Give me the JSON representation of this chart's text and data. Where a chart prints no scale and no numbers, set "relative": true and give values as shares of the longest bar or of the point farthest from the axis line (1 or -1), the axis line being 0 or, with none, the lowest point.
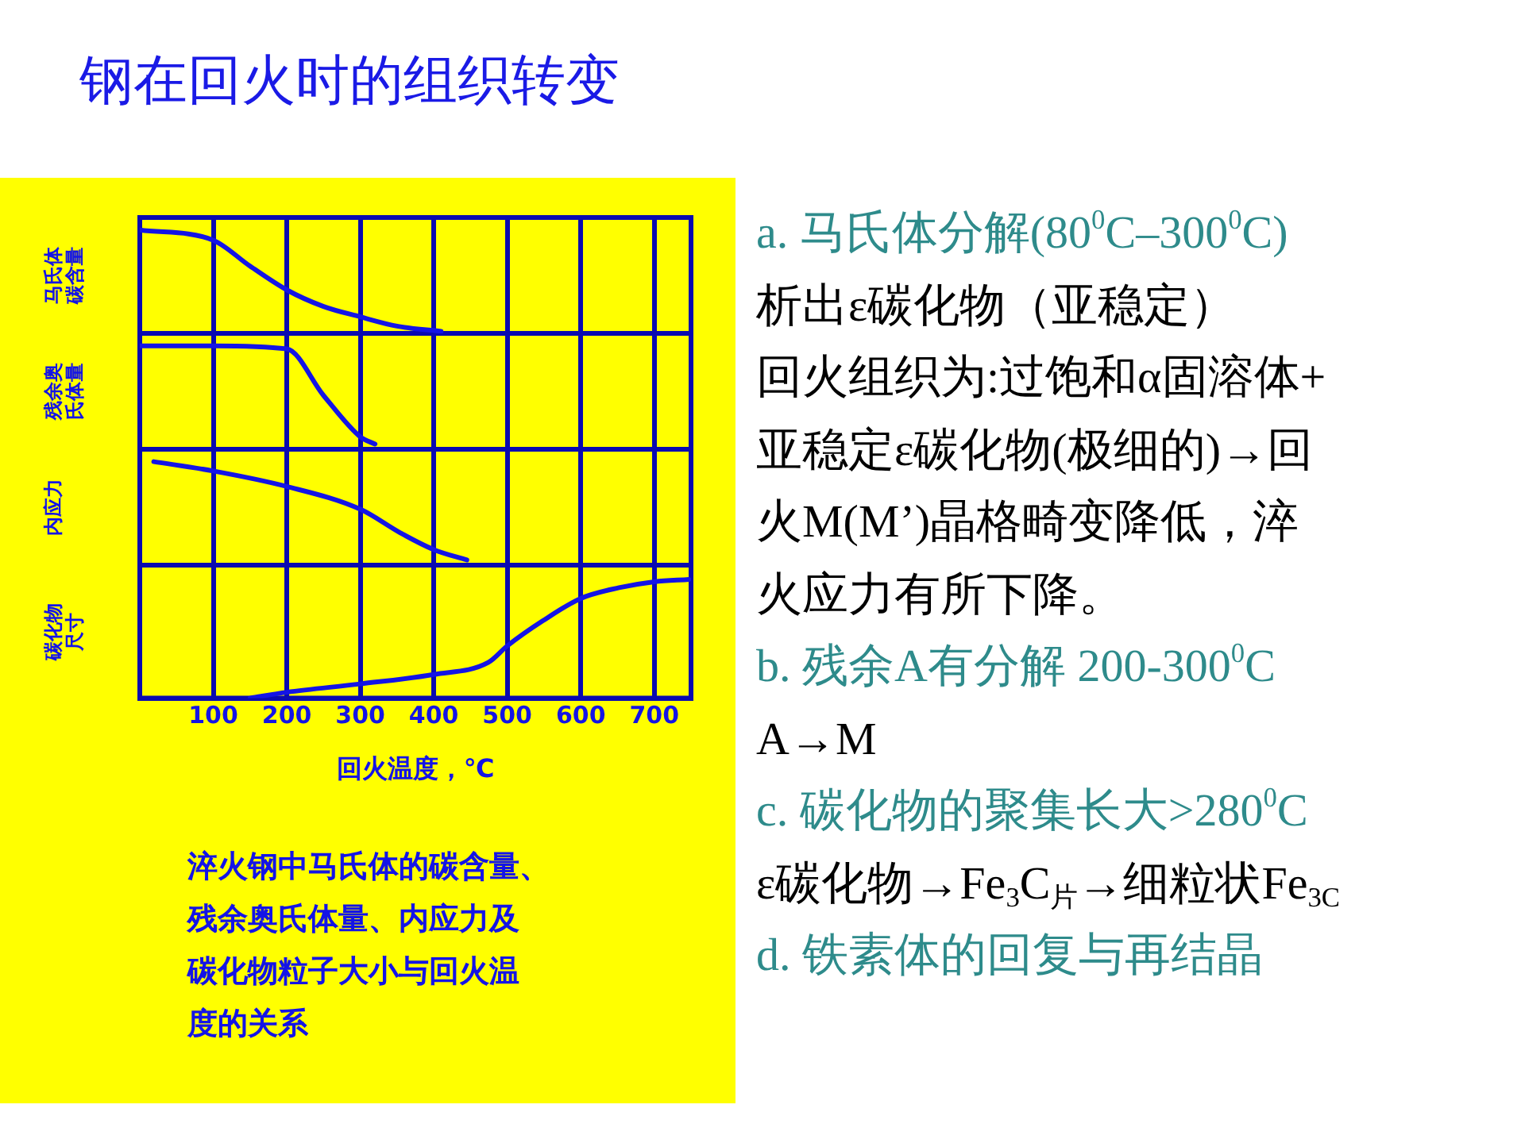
{
  "chart_data": [
    {
      "type": "line",
      "relative": true,
      "ylabel": "马氏体碳含量",
      "xlim": [
        0,
        750
      ],
      "xticks": [
        100,
        200,
        300,
        400,
        500,
        600,
        700
      ],
      "tick_labels": false,
      "grid": "x",
      "marker": "none",
      "color": "#1414e6",
      "x": [
        0,
        100,
        150,
        200,
        250,
        300,
        350,
        410
      ],
      "values": [
        1,
        0.9,
        0.65,
        0.42,
        0.26,
        0.16,
        0.07,
        0.02
      ]
    },
    {
      "type": "line",
      "relative": true,
      "ylabel": "残余奥氏体量",
      "xlim": [
        0,
        750
      ],
      "xticks": [
        100,
        200,
        300,
        400,
        500,
        600,
        700
      ],
      "tick_labels": false,
      "grid": "x",
      "marker": "none",
      "color": "#1414e6",
      "x": [
        0,
        100,
        200,
        250,
        300,
        320
      ],
      "values": [
        1,
        1,
        0.97,
        0.52,
        0.12,
        0.05
      ]
    },
    {
      "type": "line",
      "relative": true,
      "ylabel": "内应力",
      "xlim": [
        0,
        750
      ],
      "xticks": [
        100,
        200,
        300,
        400,
        500,
        600,
        700
      ],
      "tick_labels": false,
      "grid": "x",
      "marker": "none",
      "color": "#1414e6",
      "x": [
        19,
        100,
        200,
        300,
        355,
        400,
        445
      ],
      "values": [
        1,
        0.91,
        0.76,
        0.54,
        0.31,
        0.15,
        0.05
      ]
    },
    {
      "type": "line",
      "relative": true,
      "ylabel": "碳化物尺寸",
      "xlabel": "回火温度，℃",
      "xlim": [
        0,
        750
      ],
      "xticks": [
        100,
        200,
        300,
        400,
        500,
        600,
        700
      ],
      "tick_labels": "x",
      "grid": "x",
      "marker": "none",
      "color": "#1414e6",
      "x": [
        150,
        200,
        300,
        400,
        474,
        500,
        548,
        600,
        652,
        700,
        747
      ],
      "values": [
        0,
        0.05,
        0.12,
        0.2,
        0.3,
        0.44,
        0.65,
        0.84,
        0.93,
        0.98,
        1
      ],
      "annotations": [
        "淬火钢中马氏体的碳含量、",
        "残余奥氏体量、内应力及",
        "碳化物粒子大小与回火温",
        "度的关系"
      ]
    },
    {
      "type": "other",
      "title": "钢在回火时的组织转变",
      "annotations": [
        "a. 马氏体分解(80$^{0}$C–300$^{0}$C)",
        "析出ε碳化物（亚稳定）",
        "回火组织为:过饱和α固溶体+",
        "亚稳定ε碳化物(极细的)→回",
        "火M(M’)晶格畸变降低，淬",
        "火应力有所下降。",
        "b. 残余A有分解 200-300$^{0}$C",
        "A→M",
        "c. 碳化物的聚集长大>280$^{0}$C",
        "ε碳化物→Fe$_{3}$C$_{片}$→细粒状Fe$_{3C}$",
        "d. 铁素体的回复与再结晶"
      ],
      "colors": [
        "#2e8b8b",
        "#000000",
        "#000000",
        "#000000",
        "#000000",
        "#000000",
        "#2e8b8b",
        "#000000",
        "#2e8b8b",
        "#000000",
        "#2e8b8b"
      ]
    }
  ]
}
